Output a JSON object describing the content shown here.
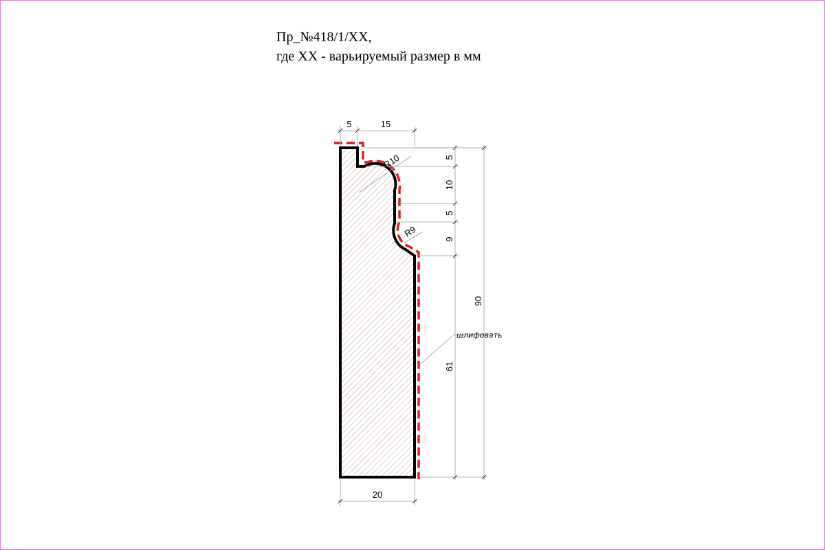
{
  "title": {
    "line1": "Пр_№418/1/XX,",
    "line2": "где XX - варьируемый размер в мм"
  },
  "dimensions": {
    "top_left": "5",
    "top_right": "15",
    "bottom_width": "20",
    "right_seg_1": "5",
    "right_seg_2": "10",
    "right_seg_3": "5",
    "right_seg_4": "9",
    "right_seg_5": "61",
    "overall_height": "90",
    "radius_top": "R10",
    "radius_bottom": "R9"
  },
  "note": {
    "sanding": "шлифовать"
  },
  "colors": {
    "frame": "#e07ad8",
    "profile": "#000000",
    "processed_edge": "#e21b1b",
    "hatch": "#b08080",
    "dim_line": "#9a9a9a"
  }
}
